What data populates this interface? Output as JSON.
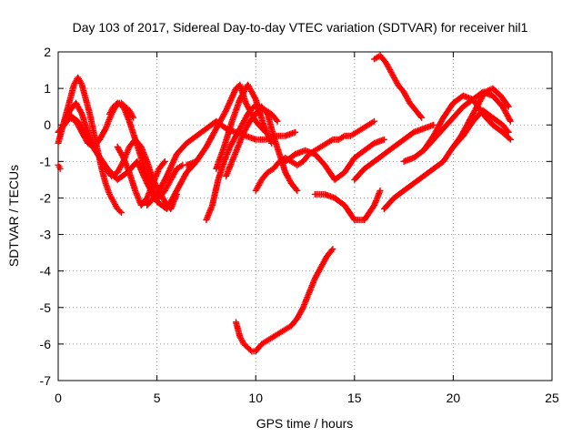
{
  "chart_data": {
    "type": "scatter",
    "title": "Day 103 of 2017, Sidereal Day-to-day VTEC variation (SDTVAR) for receiver hil1",
    "xlabel": "GPS time / hours",
    "ylabel": "SDTVAR / TECUs",
    "xlim": [
      0,
      25
    ],
    "ylim": [
      -7,
      2
    ],
    "xticks": [
      "0",
      "5",
      "10",
      "15",
      "20",
      "25"
    ],
    "yticks": [
      "-7",
      "-6",
      "-5",
      "-4",
      "-3",
      "-2",
      "-1",
      "0",
      "1",
      "2"
    ],
    "grid": true,
    "marker": "+",
    "color": "#ff0000",
    "series": [
      {
        "x": [
          0.0,
          0.2,
          0.4,
          0.6,
          0.8,
          1.0,
          1.2,
          1.4,
          1.6,
          1.8,
          2.0,
          2.2,
          2.4,
          2.6,
          2.8,
          3.0,
          3.2
        ],
        "y": [
          -0.5,
          -0.1,
          0.3,
          0.7,
          1.1,
          1.3,
          1.1,
          0.7,
          0.3,
          -0.2,
          -0.7,
          -1.2,
          -1.6,
          -1.9,
          -2.1,
          -2.3,
          -2.4
        ]
      },
      {
        "x": [
          0.0,
          0.3,
          0.6,
          0.9,
          1.2,
          1.5,
          1.8,
          2.1,
          2.4,
          2.7,
          3.0,
          3.3,
          3.6,
          3.9,
          4.2,
          4.5,
          4.8,
          5.1,
          5.4,
          5.7,
          6.0,
          6.3
        ],
        "y": [
          -0.2,
          0.0,
          0.2,
          0.1,
          -0.2,
          -0.5,
          -0.6,
          -0.4,
          -0.1,
          0.3,
          0.6,
          0.5,
          0.1,
          -0.4,
          -0.9,
          -1.4,
          -1.8,
          -2.0,
          -1.8,
          -1.5,
          -1.2,
          -1.1
        ]
      },
      {
        "x": [
          0.3,
          0.6,
          0.9,
          1.2,
          1.5,
          1.8,
          2.1,
          2.4,
          2.7,
          3.0,
          3.3,
          3.6,
          3.9,
          4.2,
          4.5,
          4.8,
          5.1,
          5.4,
          5.7,
          6.0
        ],
        "y": [
          0.1,
          0.4,
          0.6,
          0.3,
          -0.2,
          -0.6,
          -0.9,
          -1.2,
          -1.4,
          -1.3,
          -1.0,
          -0.6,
          -0.4,
          -0.6,
          -1.0,
          -1.5,
          -1.8,
          -2.1,
          -2.3,
          -1.9
        ]
      },
      {
        "x": [
          0.5,
          1.0,
          1.5,
          2.0,
          2.5,
          3.0,
          3.5,
          4.0,
          4.5,
          5.0,
          5.5,
          6.0,
          6.5,
          7.0
        ],
        "y": [
          0.3,
          0.1,
          -0.4,
          -0.8,
          -1.2,
          -1.5,
          -1.3,
          -1.0,
          -1.6,
          -2.1,
          -2.3,
          -1.8,
          -1.3,
          -1.0
        ]
      },
      {
        "x": [
          3.0,
          3.3,
          3.6,
          3.9,
          4.2,
          4.5,
          4.8,
          5.1,
          5.4
        ],
        "y": [
          -0.6,
          -0.9,
          -1.3,
          -1.8,
          -2.2,
          -2.0,
          -1.6,
          -1.2,
          -1.0
        ]
      },
      {
        "x": [
          4.5,
          5.0,
          5.5,
          6.0,
          6.5,
          7.0,
          7.5,
          8.0,
          8.5,
          9.0,
          9.5,
          10.0,
          10.5,
          11.0,
          11.5,
          12.0
        ],
        "y": [
          -2.2,
          -1.9,
          -1.4,
          -0.8,
          -0.5,
          -0.3,
          -0.1,
          0.1,
          -0.1,
          -0.2,
          -0.3,
          -0.4,
          -0.4,
          -0.3,
          -0.3,
          -0.2
        ]
      },
      {
        "x": [
          6.5,
          7.0,
          7.5,
          8.0,
          8.5,
          9.0,
          9.2,
          9.5,
          10.0,
          10.5
        ],
        "y": [
          -1.1,
          -1.0,
          -0.6,
          -0.1,
          0.4,
          1.0,
          1.1,
          0.6,
          0.1,
          -0.2
        ]
      },
      {
        "x": [
          7.5,
          7.8,
          8.1,
          8.4,
          8.7,
          9.0,
          9.3,
          9.6,
          9.9,
          10.2,
          10.5,
          10.8,
          11.1
        ],
        "y": [
          -2.6,
          -2.2,
          -1.5,
          -1.0,
          -0.6,
          -0.3,
          0.0,
          0.3,
          0.5,
          0.5,
          0.4,
          0.3,
          0.1
        ]
      },
      {
        "x": [
          8.0,
          8.4,
          8.8,
          9.2,
          9.6,
          10.0,
          10.4,
          10.8
        ],
        "y": [
          -1.2,
          -0.6,
          0.1,
          0.7,
          1.1,
          0.7,
          0.0,
          -0.5
        ]
      },
      {
        "x": [
          8.5,
          8.8,
          9.1,
          9.4,
          9.7,
          10.0,
          10.3,
          10.6,
          10.9,
          11.2,
          11.5,
          11.8,
          12.1
        ],
        "y": [
          -1.4,
          -1.0,
          -0.6,
          -0.2,
          0.1,
          0.3,
          0.5,
          0.3,
          -0.3,
          -0.8,
          -1.3,
          -1.6,
          -1.8
        ]
      },
      {
        "x": [
          10.0,
          10.3,
          10.6,
          10.9,
          11.2,
          11.5,
          11.8,
          12.1,
          12.4,
          12.7,
          13.0,
          13.3,
          13.6,
          13.9,
          14.2,
          14.5,
          14.8,
          15.1,
          15.4,
          15.7,
          16.0
        ],
        "y": [
          -1.8,
          -1.5,
          -1.3,
          -1.2,
          -1.0,
          -0.9,
          -1.0,
          -1.1,
          -1.0,
          -0.8,
          -0.7,
          -0.6,
          -0.5,
          -0.4,
          -0.4,
          -0.3,
          -0.3,
          -0.2,
          -0.1,
          0.0,
          0.1
        ]
      },
      {
        "x": [
          11.5,
          12.0,
          12.5,
          13.0,
          13.5,
          14.0,
          14.5,
          15.0,
          15.5,
          16.0,
          16.5
        ],
        "y": [
          -1.0,
          -0.8,
          -0.7,
          -0.8,
          -1.1,
          -1.5,
          -1.3,
          -0.9,
          -0.7,
          -0.5,
          -0.4
        ]
      },
      {
        "x": [
          9.0,
          9.2,
          9.4,
          9.6,
          9.8,
          10.0,
          10.3,
          10.6,
          10.9,
          11.2,
          11.5,
          11.8,
          12.1,
          12.4,
          12.7,
          13.0,
          13.3,
          13.6,
          13.9
        ],
        "y": [
          -5.4,
          -5.8,
          -6.0,
          -6.1,
          -6.2,
          -6.2,
          -6.0,
          -5.9,
          -5.8,
          -5.7,
          -5.6,
          -5.5,
          -5.3,
          -5.0,
          -4.6,
          -4.2,
          -3.9,
          -3.6,
          -3.4
        ]
      },
      {
        "x": [
          13.0,
          13.5,
          14.0,
          14.5,
          15.0,
          15.5,
          16.0,
          16.3
        ],
        "y": [
          -1.9,
          -1.9,
          -2.0,
          -2.2,
          -2.6,
          -2.6,
          -2.2,
          -1.8
        ]
      },
      {
        "x": [
          15.0,
          15.5,
          16.0,
          16.5,
          17.0,
          17.5,
          18.0,
          18.5,
          19.0
        ],
        "y": [
          -1.5,
          -1.2,
          -1.0,
          -0.8,
          -0.6,
          -0.4,
          -0.2,
          -0.1,
          0.0
        ]
      },
      {
        "x": [
          16.0,
          16.3,
          16.6,
          16.9,
          17.2,
          17.5,
          17.8,
          18.1,
          18.4
        ],
        "y": [
          1.8,
          1.9,
          1.7,
          1.4,
          1.1,
          0.9,
          0.6,
          0.4,
          0.2
        ]
      },
      {
        "x": [
          16.5,
          17.0,
          17.5,
          18.0,
          18.5,
          19.0,
          19.5,
          20.0,
          20.5,
          21.0,
          21.5,
          22.0,
          22.5,
          22.8
        ],
        "y": [
          -2.3,
          -2.0,
          -1.8,
          -1.6,
          -1.4,
          -1.2,
          -1.0,
          -0.6,
          -0.3,
          0.1,
          0.4,
          0.2,
          0.0,
          -0.2
        ]
      },
      {
        "x": [
          17.5,
          18.0,
          18.5,
          19.0,
          19.5,
          20.0,
          20.5,
          21.0,
          21.5,
          22.0,
          22.5,
          22.9
        ],
        "y": [
          -1.0,
          -0.9,
          -0.7,
          -0.4,
          -0.1,
          0.2,
          0.5,
          0.7,
          0.9,
          0.8,
          0.5,
          0.1
        ]
      },
      {
        "x": [
          18.5,
          19.0,
          19.5,
          20.0,
          20.5,
          21.0,
          21.5,
          22.0,
          22.5,
          22.9
        ],
        "y": [
          -0.7,
          -0.3,
          0.2,
          0.6,
          0.8,
          0.7,
          0.3,
          0.0,
          -0.2,
          -0.4
        ]
      },
      {
        "x": [
          20.0,
          20.4,
          20.8,
          21.2,
          21.6,
          22.0,
          22.4,
          22.8
        ],
        "y": [
          -0.6,
          -0.3,
          0.1,
          0.5,
          0.9,
          1.0,
          0.8,
          0.5
        ]
      },
      {
        "x": [
          0.0,
          0.05,
          0.1
        ],
        "y": [
          -1.1,
          -1.15,
          -1.2
        ]
      },
      {
        "x": [
          2.6,
          2.8,
          3.0,
          3.2,
          3.4,
          3.6,
          3.8
        ],
        "y": [
          0.3,
          0.5,
          0.6,
          0.6,
          0.5,
          0.4,
          0.2
        ]
      }
    ]
  }
}
